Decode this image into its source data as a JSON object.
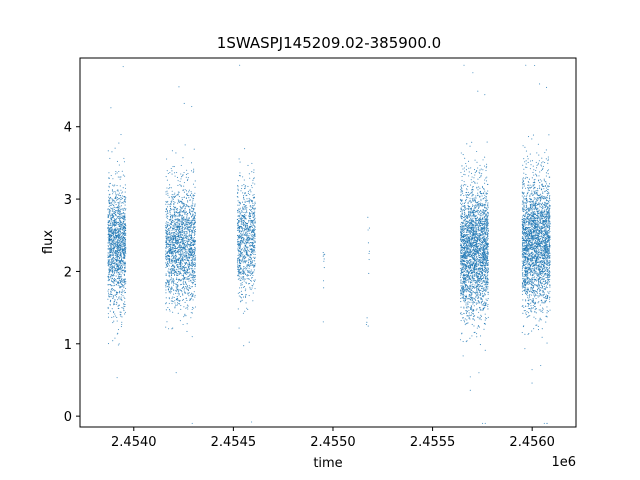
{
  "chart_data": {
    "type": "scatter",
    "title": "1SWASPJ145209.02-385900.0",
    "xlabel": "time",
    "ylabel": "flux",
    "x_offset_label": "1e6",
    "xlim": [
      2453730,
      2456220
    ],
    "ylim": [
      -0.15,
      4.95
    ],
    "xticks": [
      2454000,
      2454500,
      2455000,
      2455500,
      2456000
    ],
    "xtick_labels": [
      "2.4540",
      "2.4545",
      "2.4550",
      "2.4555",
      "2.4560"
    ],
    "yticks": [
      0,
      1,
      2,
      3,
      4
    ],
    "ytick_labels": [
      "0",
      "1",
      "2",
      "3",
      "4"
    ],
    "grid": false,
    "marker_color": "#1f77b4",
    "series": [
      {
        "clusters": [
          {
            "x_range": [
              2453870,
              2453960
            ],
            "flux_center": 2.35,
            "flux_spread": 0.45,
            "count": 1400
          },
          {
            "x_range": [
              2454160,
              2454310
            ],
            "flux_center": 2.35,
            "flux_spread": 0.45,
            "count": 1800
          },
          {
            "x_range": [
              2454520,
              2454610
            ],
            "flux_center": 2.45,
            "flux_spread": 0.42,
            "count": 900
          },
          {
            "x_range": [
              2454950,
              2454960
            ],
            "flux_center": 2.1,
            "flux_spread": 0.4,
            "count": 10
          },
          {
            "x_range": [
              2455160,
              2455185
            ],
            "flux_center": 2.2,
            "flux_spread": 0.5,
            "count": 12
          },
          {
            "x_range": [
              2455640,
              2455780
            ],
            "flux_center": 2.3,
            "flux_spread": 0.5,
            "count": 2600
          },
          {
            "x_range": [
              2455950,
              2456090
            ],
            "flux_center": 2.4,
            "flux_spread": 0.5,
            "count": 2600
          }
        ]
      }
    ]
  }
}
